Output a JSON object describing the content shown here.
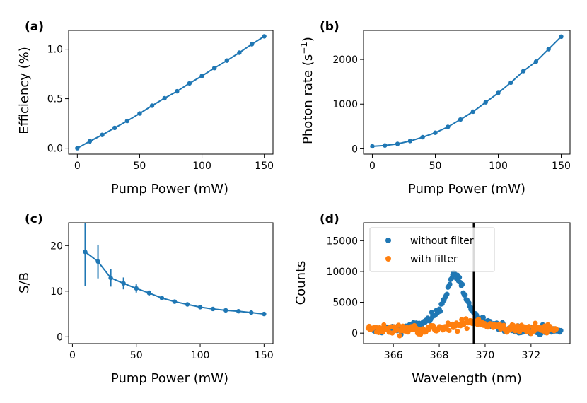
{
  "colors": {
    "blue": "#1f77b4",
    "orange": "#ff7f0e",
    "black": "#000000"
  },
  "chart_data": [
    {
      "id": "a",
      "panel_label": "(a)",
      "type": "line",
      "xlabel": "Pump Power (mW)",
      "ylabel": "Efficiency (%)",
      "xlim": [
        -7,
        157
      ],
      "ylim": [
        -0.06,
        1.19
      ],
      "xticks": [
        0,
        50,
        100,
        150
      ],
      "yticks": [
        0.0,
        0.5,
        1.0
      ],
      "ytick_labels": [
        "0.0",
        "0.5",
        "1.0"
      ],
      "x": [
        0,
        10,
        20,
        30,
        40,
        50,
        60,
        70,
        80,
        90,
        100,
        110,
        120,
        130,
        140,
        150
      ],
      "y": [
        0.0,
        0.07,
        0.135,
        0.205,
        0.275,
        0.35,
        0.43,
        0.505,
        0.575,
        0.655,
        0.73,
        0.81,
        0.885,
        0.965,
        1.05,
        1.13
      ]
    },
    {
      "id": "b",
      "panel_label": "(b)",
      "type": "line",
      "xlabel": "Pump Power (mW)",
      "ylabel_main": "Photon rate (s",
      "ylabel_sup": "−1",
      "ylabel_tail": ")",
      "xlim": [
        -7,
        157
      ],
      "ylim": [
        -120,
        2650
      ],
      "xticks": [
        0,
        50,
        100,
        150
      ],
      "yticks": [
        0,
        1000,
        2000
      ],
      "ytick_labels": [
        "0",
        "1000",
        "2000"
      ],
      "x": [
        0,
        10,
        20,
        30,
        40,
        50,
        60,
        70,
        80,
        90,
        100,
        110,
        120,
        130,
        140,
        150
      ],
      "y": [
        55,
        75,
        110,
        175,
        260,
        360,
        490,
        655,
        830,
        1040,
        1250,
        1480,
        1740,
        1950,
        2230,
        2510
      ]
    },
    {
      "id": "c",
      "panel_label": "(c)",
      "type": "line",
      "xlabel": "Pump Power (mW)",
      "ylabel": "S/B",
      "xlim": [
        -3,
        157
      ],
      "ylim": [
        -1.5,
        25
      ],
      "xticks": [
        0,
        50,
        100,
        150
      ],
      "yticks": [
        0,
        10,
        20
      ],
      "ytick_labels": [
        "0",
        "10",
        "20"
      ],
      "x": [
        10,
        20,
        30,
        40,
        50,
        60,
        70,
        80,
        90,
        100,
        110,
        120,
        130,
        140,
        150
      ],
      "y": [
        18.6,
        16.5,
        12.9,
        11.7,
        10.6,
        9.6,
        8.5,
        7.7,
        7.1,
        6.5,
        6.1,
        5.8,
        5.6,
        5.3,
        5.0
      ],
      "yerr": [
        7.4,
        3.7,
        1.9,
        1.3,
        0.9,
        0.55,
        0.45,
        0.35,
        0.3,
        0.25,
        0.22,
        0.2,
        0.18,
        0.16,
        0.15
      ]
    },
    {
      "id": "d",
      "panel_label": "(d)",
      "type": "scatter",
      "xlabel": "Wavelength (nm)",
      "ylabel": "Counts",
      "xlim": [
        364.7,
        373.7
      ],
      "ylim": [
        -1700,
        17900
      ],
      "xticks": [
        366,
        368,
        370,
        372
      ],
      "yticks": [
        0,
        5000,
        10000,
        15000
      ],
      "ytick_labels": [
        "0",
        "5000",
        "10000",
        "15000"
      ],
      "vline_x": 369.5,
      "legend_position": "top-left",
      "series": [
        {
          "name": "without filter",
          "color": "#1f77b4",
          "x_start": 365.0,
          "x_end": 373.3,
          "points": 200,
          "peak_center": 368.7,
          "peak_height": 9200,
          "peak_width": 0.85,
          "baseline": 250,
          "noise": 600
        },
        {
          "name": "with filter",
          "color": "#ff7f0e",
          "x_start": 364.9,
          "x_end": 373.1,
          "points": 180,
          "peak_center": 369.55,
          "peak_height": 1400,
          "peak_width": 0.9,
          "baseline": 600,
          "noise": 700
        }
      ]
    }
  ]
}
